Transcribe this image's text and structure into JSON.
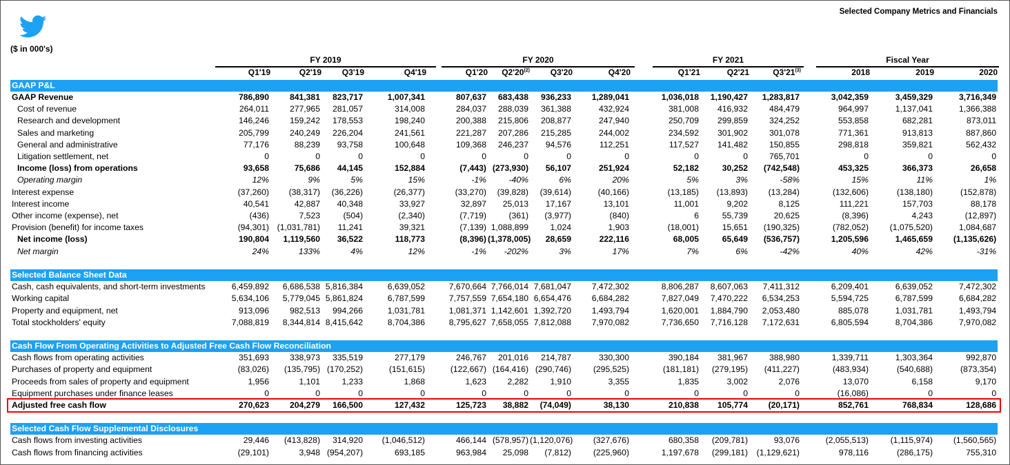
{
  "title": "Selected Company Metrics and Financials",
  "logo": {
    "icon": "twitter-bird-icon",
    "color": "#1da1f2"
  },
  "units": "($ in 000's)",
  "accent_color": "#1da1f2",
  "highlight_color": "#e00000",
  "groups": [
    "FY 2019",
    "FY 2020",
    "FY 2021",
    "Fiscal Year"
  ],
  "columns": [
    {
      "label": "Q1'19"
    },
    {
      "label": "Q2'19"
    },
    {
      "label": "Q3'19"
    },
    {
      "label": "Q4'19"
    },
    {
      "label": "Q1'20"
    },
    {
      "label": "Q2'20",
      "note": "(2)"
    },
    {
      "label": "Q3'20"
    },
    {
      "label": "Q4'20"
    },
    {
      "label": "Q1'21"
    },
    {
      "label": "Q2'21"
    },
    {
      "label": "Q3'21",
      "note": "(3)"
    },
    {
      "label": "2018"
    },
    {
      "label": "2019"
    },
    {
      "label": "2020"
    }
  ],
  "sections": [
    {
      "title": "GAAP P&L",
      "rows": [
        {
          "label": "GAAP Revenue",
          "style": "bold",
          "values": [
            "786,890",
            "841,381",
            "823,717",
            "1,007,341",
            "807,637",
            "683,438",
            "936,233",
            "1,289,041",
            "1,036,018",
            "1,190,427",
            "1,283,817",
            "3,042,359",
            "3,459,329",
            "3,716,349"
          ]
        },
        {
          "label": "Cost of revenue",
          "style": "indent",
          "values": [
            "264,011",
            "277,965",
            "281,057",
            "314,008",
            "284,037",
            "288,039",
            "361,388",
            "432,924",
            "381,008",
            "416,932",
            "484,479",
            "964,997",
            "1,137,041",
            "1,366,388"
          ]
        },
        {
          "label": "Research and development",
          "style": "indent",
          "values": [
            "146,246",
            "159,242",
            "178,553",
            "198,240",
            "200,388",
            "215,806",
            "208,877",
            "247,940",
            "250,709",
            "299,859",
            "324,252",
            "553,858",
            "682,281",
            "873,011"
          ]
        },
        {
          "label": "Sales and marketing",
          "style": "indent",
          "values": [
            "205,799",
            "240,249",
            "226,204",
            "241,561",
            "221,287",
            "207,286",
            "215,285",
            "244,002",
            "234,592",
            "301,902",
            "301,078",
            "771,361",
            "913,813",
            "887,860"
          ]
        },
        {
          "label": "General and administrative",
          "style": "indent",
          "values": [
            "77,176",
            "88,239",
            "93,758",
            "100,648",
            "109,368",
            "246,237",
            "94,576",
            "112,251",
            "117,527",
            "141,482",
            "150,855",
            "298,818",
            "359,821",
            "562,432"
          ]
        },
        {
          "label": "Litigation settlement, net",
          "style": "indent",
          "values": [
            "0",
            "0",
            "0",
            "0",
            "0",
            "0",
            "0",
            "0",
            "0",
            "0",
            "765,701",
            "0",
            "0",
            "0"
          ]
        },
        {
          "label": "Income (loss) from operations",
          "style": "bold indent",
          "values": [
            "93,658",
            "75,686",
            "44,145",
            "152,884",
            "(7,443)",
            "(273,930)",
            "56,107",
            "251,924",
            "52,182",
            "30,252",
            "(742,548)",
            "453,325",
            "366,373",
            "26,658"
          ]
        },
        {
          "label": "Operating margin",
          "style": "ital indent",
          "values": [
            "12%",
            "9%",
            "5%",
            "15%",
            "-1%",
            "-40%",
            "6%",
            "20%",
            "5%",
            "3%",
            "-58%",
            "15%",
            "11%",
            "1%"
          ]
        },
        {
          "label": "Interest expense",
          "style": "",
          "values": [
            "(37,260)",
            "(38,317)",
            "(36,226)",
            "(26,377)",
            "(33,270)",
            "(39,828)",
            "(39,614)",
            "(40,166)",
            "(13,185)",
            "(13,893)",
            "(13,284)",
            "(132,606)",
            "(138,180)",
            "(152,878)"
          ]
        },
        {
          "label": "Interest income",
          "style": "",
          "values": [
            "40,541",
            "42,887",
            "40,348",
            "33,927",
            "32,897",
            "25,013",
            "17,167",
            "13,101",
            "11,001",
            "9,202",
            "8,125",
            "111,221",
            "157,703",
            "88,178"
          ]
        },
        {
          "label": "Other income (expense), net",
          "style": "",
          "values": [
            "(436)",
            "7,523",
            "(504)",
            "(2,340)",
            "(7,719)",
            "(361)",
            "(3,977)",
            "(840)",
            "6",
            "55,739",
            "20,625",
            "(8,396)",
            "4,243",
            "(12,897)"
          ]
        },
        {
          "label": "Provision (benefit) for income taxes",
          "style": "",
          "values": [
            "(94,301)",
            "(1,031,781)",
            "11,241",
            "39,321",
            "(7,139)",
            "1,088,899",
            "1,024",
            "1,903",
            "(18,001)",
            "15,651",
            "(190,325)",
            "(782,052)",
            "(1,075,520)",
            "1,084,687"
          ]
        },
        {
          "label": "Net income (loss)",
          "style": "bold indent",
          "values": [
            "190,804",
            "1,119,560",
            "36,522",
            "118,773",
            "(8,396)",
            "(1,378,005)",
            "28,659",
            "222,116",
            "68,005",
            "65,649",
            "(536,757)",
            "1,205,596",
            "1,465,659",
            "(1,135,626)"
          ]
        },
        {
          "label": "Net margin",
          "style": "ital indent",
          "values": [
            "24%",
            "133%",
            "4%",
            "12%",
            "-1%",
            "-202%",
            "3%",
            "17%",
            "7%",
            "6%",
            "-42%",
            "40%",
            "42%",
            "-31%"
          ]
        }
      ]
    },
    {
      "title": "Selected Balance Sheet Data",
      "rows": [
        {
          "label": "Cash, cash equivalents, and short-term investments",
          "style": "",
          "values": [
            "6,459,892",
            "6,686,538",
            "5,816,384",
            "6,639,052",
            "7,670,664",
            "7,766,014",
            "7,681,047",
            "7,472,302",
            "8,806,287",
            "8,607,063",
            "7,411,312",
            "6,209,401",
            "6,639,052",
            "7,472,302"
          ]
        },
        {
          "label": "Working capital",
          "style": "",
          "values": [
            "5,634,106",
            "5,779,045",
            "5,861,824",
            "6,787,599",
            "7,757,559",
            "7,654,180",
            "6,654,476",
            "6,684,282",
            "7,827,049",
            "7,470,222",
            "6,534,253",
            "5,594,725",
            "6,787,599",
            "6,684,282"
          ]
        },
        {
          "label": "Property and equipment, net",
          "style": "",
          "values": [
            "913,096",
            "982,513",
            "994,266",
            "1,031,781",
            "1,081,371",
            "1,142,601",
            "1,392,720",
            "1,493,794",
            "1,620,001",
            "1,884,790",
            "2,053,480",
            "885,078",
            "1,031,781",
            "1,493,794"
          ]
        },
        {
          "label": "Total stockholders' equity",
          "style": "",
          "values": [
            "7,088,819",
            "8,344,814",
            "8,415,642",
            "8,704,386",
            "8,795,627",
            "7,658,055",
            "7,812,088",
            "7,970,082",
            "7,736,650",
            "7,716,128",
            "7,172,631",
            "6,805,594",
            "8,704,386",
            "7,970,082"
          ]
        }
      ]
    },
    {
      "title": "Cash Flow From Operating Activities to Adjusted Free Cash Flow Reconciliation",
      "rows": [
        {
          "label": "Cash flows from operating activities",
          "style": "",
          "values": [
            "351,693",
            "338,973",
            "335,519",
            "277,179",
            "246,767",
            "201,016",
            "214,787",
            "330,300",
            "390,184",
            "381,967",
            "388,980",
            "1,339,711",
            "1,303,364",
            "992,870"
          ]
        },
        {
          "label": "Purchases of property and equipment",
          "style": "",
          "values": [
            "(83,026)",
            "(135,795)",
            "(170,252)",
            "(151,615)",
            "(122,667)",
            "(164,416)",
            "(290,746)",
            "(295,525)",
            "(181,181)",
            "(279,195)",
            "(411,227)",
            "(483,934)",
            "(540,688)",
            "(873,354)"
          ]
        },
        {
          "label": "Proceeds from sales of property and equipment",
          "style": "",
          "values": [
            "1,956",
            "1,101",
            "1,233",
            "1,868",
            "1,623",
            "2,282",
            "1,910",
            "3,355",
            "1,835",
            "3,002",
            "2,076",
            "13,070",
            "6,158",
            "9,170"
          ]
        },
        {
          "label": "Equipment purchases under finance leases",
          "style": "",
          "values": [
            "0",
            "0",
            "0",
            "0",
            "0",
            "0",
            "0",
            "0",
            "0",
            "0",
            "0",
            "(16,086)",
            "0",
            "0"
          ]
        },
        {
          "label": "Adjusted free cash flow",
          "style": "bold highlight",
          "values": [
            "270,623",
            "204,279",
            "166,500",
            "127,432",
            "125,723",
            "38,882",
            "(74,049)",
            "38,130",
            "210,838",
            "105,774",
            "(20,171)",
            "852,761",
            "768,834",
            "128,686"
          ]
        }
      ]
    },
    {
      "title": "Selected Cash Flow Supplemental Disclosures",
      "rows": [
        {
          "label": "Cash flows from investing activities",
          "style": "",
          "values": [
            "29,446",
            "(413,828)",
            "314,920",
            "(1,046,512)",
            "466,144",
            "(578,957)",
            "(1,120,076)",
            "(327,676)",
            "680,358",
            "(209,781)",
            "93,076",
            "(2,055,513)",
            "(1,115,974)",
            "(1,560,565)"
          ]
        },
        {
          "label": "Cash flows from financing activities",
          "style": "",
          "values": [
            "(29,101)",
            "3,948",
            "(954,207)",
            "693,185",
            "963,984",
            "25,098",
            "(7,812)",
            "(225,960)",
            "1,197,678",
            "(299,181)",
            "(1,129,621)",
            "978,116",
            "(286,175)",
            "755,310"
          ]
        }
      ]
    }
  ]
}
